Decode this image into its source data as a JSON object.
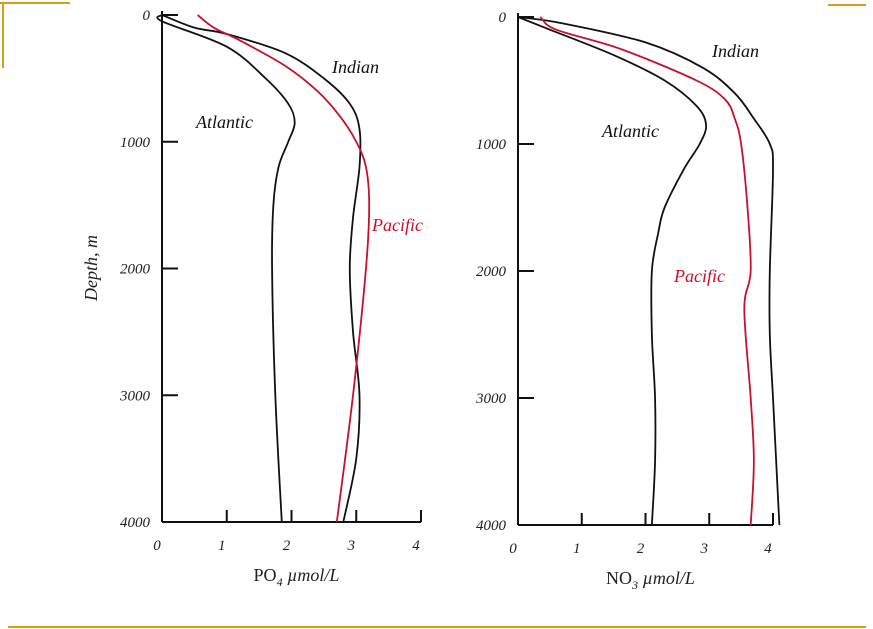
{
  "decoration": {
    "accent": "#d4a017"
  },
  "chart_data": [
    {
      "type": "line",
      "orientation": "depth-profile",
      "xlabel": "PO4 µmol/L",
      "xlabel_main": "PO",
      "xlabel_sub": "4",
      "xlabel_unit": "µmol/L",
      "ylabel": "Depth, m",
      "xlim": [
        0,
        4
      ],
      "ylim": [
        4000,
        0
      ],
      "xticks": [
        "0",
        "1",
        "2",
        "3",
        "4"
      ],
      "yticks": [
        "0",
        "1000",
        "2000",
        "3000",
        "4000"
      ],
      "grid": false,
      "series": [
        {
          "name": "Atlantic",
          "color": "#111111",
          "depth": [
            0,
            50,
            250,
            500,
            700,
            850,
            1000,
            1200,
            1500,
            2000,
            3000,
            4000
          ],
          "values": [
            0,
            0,
            1.0,
            1.6,
            1.95,
            2.05,
            1.95,
            1.8,
            1.72,
            1.7,
            1.75,
            1.85
          ]
        },
        {
          "name": "Indian",
          "color": "#111111",
          "depth": [
            0,
            100,
            150,
            300,
            500,
            700,
            900,
            1200,
            1600,
            2000,
            2500,
            3000,
            3500,
            4000
          ],
          "values": [
            0,
            0.5,
            1.0,
            1.9,
            2.5,
            2.9,
            3.05,
            3.05,
            2.95,
            2.9,
            2.95,
            3.05,
            3.0,
            2.8
          ]
        },
        {
          "name": "Pacific",
          "color": "#c8102e",
          "depth": [
            0,
            100,
            200,
            400,
            600,
            800,
            1000,
            1200,
            1500,
            2000,
            3000,
            4000
          ],
          "values": [
            0.55,
            0.8,
            1.2,
            1.9,
            2.4,
            2.75,
            3.0,
            3.15,
            3.2,
            3.15,
            2.95,
            2.7
          ]
        }
      ]
    },
    {
      "type": "line",
      "orientation": "depth-profile",
      "xlabel": "NO3 µmol/L",
      "xlabel_main": "NO",
      "xlabel_sub": "3",
      "xlabel_unit": "µmol/L",
      "ylabel": "",
      "xlim": [
        0,
        4
      ],
      "ylim": [
        4000,
        0
      ],
      "xticks": [
        "0",
        "1",
        "2",
        "3",
        "4"
      ],
      "yticks": [
        "0",
        "1000",
        "2000",
        "3000",
        "4000"
      ],
      "grid": false,
      "series": [
        {
          "name": "Atlantic",
          "color": "#111111",
          "depth": [
            0,
            100,
            300,
            500,
            700,
            850,
            1000,
            1200,
            1500,
            1700,
            2000,
            2500,
            3000,
            3500,
            4000
          ],
          "values": [
            0,
            0.5,
            1.5,
            2.3,
            2.8,
            2.95,
            2.85,
            2.6,
            2.3,
            2.2,
            2.1,
            2.1,
            2.15,
            2.15,
            2.1
          ]
        },
        {
          "name": "Indian",
          "color": "#111111",
          "depth": [
            0,
            50,
            200,
            400,
            600,
            800,
            1000,
            1200,
            2000,
            2500,
            3000,
            3500,
            4000
          ],
          "values": [
            0,
            0.7,
            2.0,
            2.9,
            3.4,
            3.7,
            3.95,
            4.0,
            3.95,
            3.95,
            4.0,
            4.05,
            4.1
          ]
        },
        {
          "name": "Pacific",
          "color": "#c8102e",
          "depth": [
            0,
            100,
            250,
            500,
            650,
            800,
            1000,
            1500,
            2000,
            2300,
            3000,
            3500,
            4000
          ],
          "values": [
            0.35,
            0.6,
            1.6,
            2.8,
            3.25,
            3.4,
            3.5,
            3.6,
            3.65,
            3.55,
            3.65,
            3.7,
            3.65
          ]
        }
      ]
    }
  ]
}
